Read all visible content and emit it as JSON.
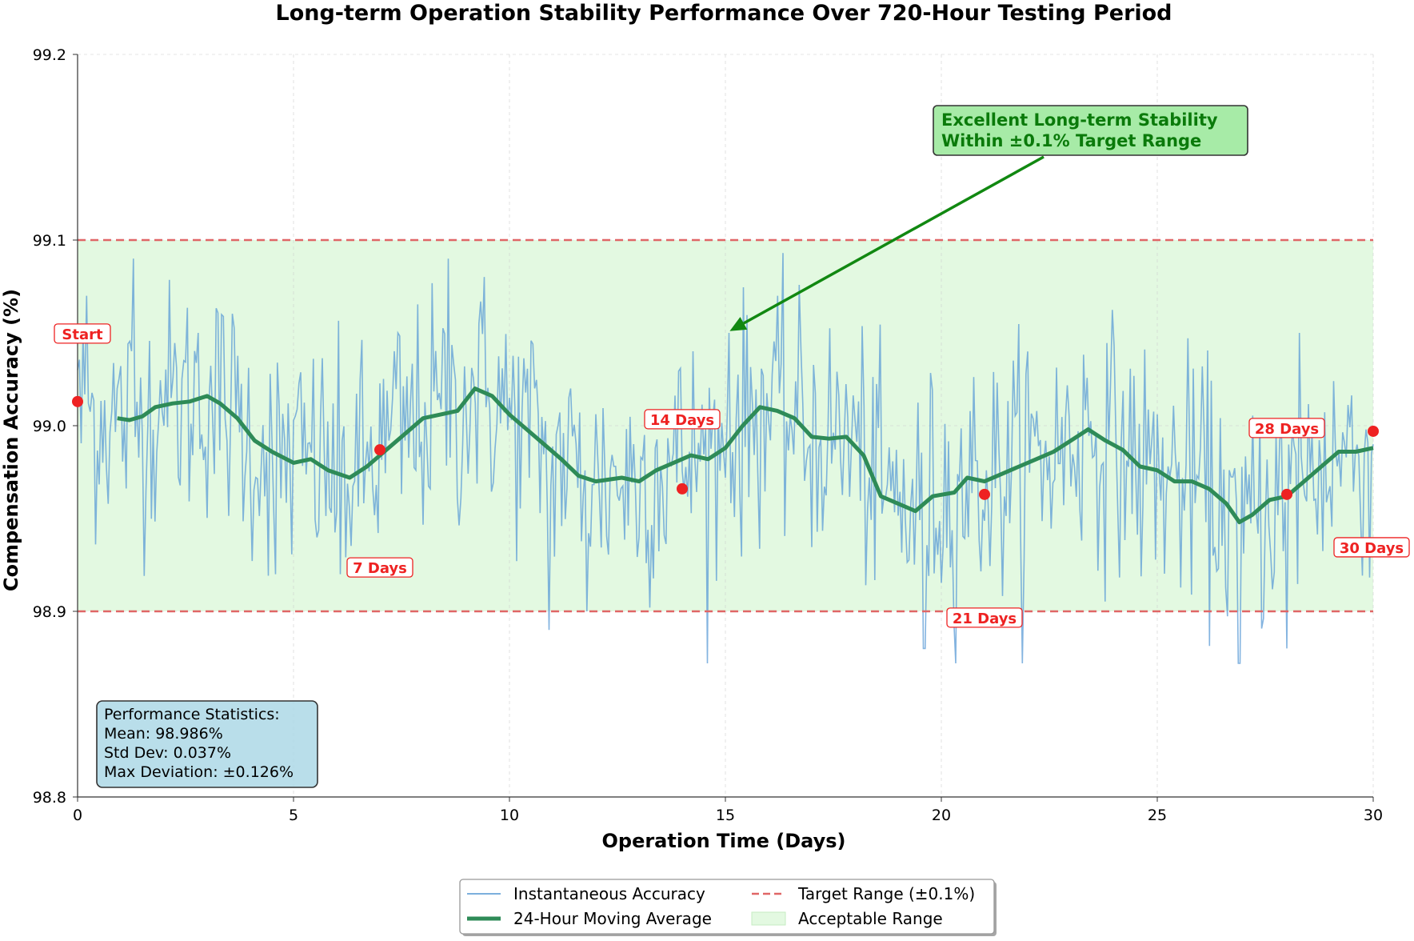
{
  "chart_data": {
    "type": "line",
    "title": "Long-term Operation Stability Performance Over 720-Hour Testing Period",
    "xlabel": "Operation Time (Days)",
    "ylabel": "Compensation Accuracy (%)",
    "xlim": [
      0,
      30
    ],
    "ylim": [
      98.8,
      99.2
    ],
    "xticks": [
      "0",
      "5",
      "10",
      "15",
      "20",
      "25",
      "30"
    ],
    "xtick_values": [
      0,
      5,
      10,
      15,
      20,
      25,
      30
    ],
    "yticks": [
      "98.8",
      "98.9",
      "99.0",
      "99.1",
      "99.2"
    ],
    "ytick_values": [
      98.8,
      98.9,
      99.0,
      99.1,
      99.2
    ],
    "grid": true,
    "series": [
      {
        "name": "Instantaneous Accuracy",
        "color": "#5b9bd5",
        "note": "hourly samples (~720), noisy around moving average",
        "seed_points": [
          {
            "x": 0.0,
            "y": 99.03
          },
          {
            "x": 0.2,
            "y": 99.07
          },
          {
            "x": 0.6,
            "y": 98.98
          },
          {
            "x": 0.9,
            "y": 99.02
          },
          {
            "x": 1.3,
            "y": 99.09
          },
          {
            "x": 2.0,
            "y": 99.0
          },
          {
            "x": 2.8,
            "y": 99.05
          },
          {
            "x": 4.0,
            "y": 98.97
          },
          {
            "x": 4.6,
            "y": 98.92
          },
          {
            "x": 6.1,
            "y": 98.92
          },
          {
            "x": 7.4,
            "y": 99.05
          },
          {
            "x": 8.6,
            "y": 99.09
          },
          {
            "x": 10.9,
            "y": 98.89
          },
          {
            "x": 11.8,
            "y": 98.9
          },
          {
            "x": 15.1,
            "y": 99.05
          },
          {
            "x": 16.2,
            "y": 99.07
          },
          {
            "x": 19.6,
            "y": 98.88
          },
          {
            "x": 22.0,
            "y": 99.04
          },
          {
            "x": 26.3,
            "y": 98.93
          },
          {
            "x": 26.9,
            "y": 98.87
          },
          {
            "x": 28.0,
            "y": 98.88
          },
          {
            "x": 28.3,
            "y": 99.05
          },
          {
            "x": 30.0,
            "y": 98.99
          }
        ]
      },
      {
        "name": "24-Hour Moving Average",
        "color": "#2e8b57",
        "points": [
          {
            "x": 0.92,
            "y": 99.004
          },
          {
            "x": 1.2,
            "y": 99.003
          },
          {
            "x": 1.5,
            "y": 99.005
          },
          {
            "x": 1.8,
            "y": 99.01
          },
          {
            "x": 2.2,
            "y": 99.012
          },
          {
            "x": 2.6,
            "y": 99.013
          },
          {
            "x": 3.0,
            "y": 99.016
          },
          {
            "x": 3.3,
            "y": 99.012
          },
          {
            "x": 3.7,
            "y": 99.004
          },
          {
            "x": 4.1,
            "y": 98.992
          },
          {
            "x": 4.5,
            "y": 98.986
          },
          {
            "x": 5.0,
            "y": 98.98
          },
          {
            "x": 5.4,
            "y": 98.982
          },
          {
            "x": 5.8,
            "y": 98.976
          },
          {
            "x": 6.3,
            "y": 98.972
          },
          {
            "x": 6.7,
            "y": 98.978
          },
          {
            "x": 7.2,
            "y": 98.988
          },
          {
            "x": 7.6,
            "y": 98.996
          },
          {
            "x": 8.0,
            "y": 99.004
          },
          {
            "x": 8.4,
            "y": 99.006
          },
          {
            "x": 8.8,
            "y": 99.008
          },
          {
            "x": 9.2,
            "y": 99.02
          },
          {
            "x": 9.6,
            "y": 99.016
          },
          {
            "x": 10.0,
            "y": 99.006
          },
          {
            "x": 10.4,
            "y": 98.998
          },
          {
            "x": 10.8,
            "y": 98.99
          },
          {
            "x": 11.2,
            "y": 98.982
          },
          {
            "x": 11.6,
            "y": 98.973
          },
          {
            "x": 12.0,
            "y": 98.97
          },
          {
            "x": 12.6,
            "y": 98.972
          },
          {
            "x": 13.0,
            "y": 98.97
          },
          {
            "x": 13.4,
            "y": 98.976
          },
          {
            "x": 13.8,
            "y": 98.98
          },
          {
            "x": 14.2,
            "y": 98.984
          },
          {
            "x": 14.6,
            "y": 98.982
          },
          {
            "x": 15.0,
            "y": 98.988
          },
          {
            "x": 15.4,
            "y": 99.0
          },
          {
            "x": 15.8,
            "y": 99.01
          },
          {
            "x": 16.2,
            "y": 99.008
          },
          {
            "x": 16.6,
            "y": 99.004
          },
          {
            "x": 17.0,
            "y": 98.994
          },
          {
            "x": 17.4,
            "y": 98.993
          },
          {
            "x": 17.8,
            "y": 98.994
          },
          {
            "x": 18.2,
            "y": 98.984
          },
          {
            "x": 18.6,
            "y": 98.962
          },
          {
            "x": 19.0,
            "y": 98.958
          },
          {
            "x": 19.4,
            "y": 98.954
          },
          {
            "x": 19.8,
            "y": 98.962
          },
          {
            "x": 20.3,
            "y": 98.964
          },
          {
            "x": 20.6,
            "y": 98.972
          },
          {
            "x": 21.0,
            "y": 98.97
          },
          {
            "x": 21.4,
            "y": 98.974
          },
          {
            "x": 21.8,
            "y": 98.978
          },
          {
            "x": 22.2,
            "y": 98.982
          },
          {
            "x": 22.6,
            "y": 98.986
          },
          {
            "x": 23.0,
            "y": 98.992
          },
          {
            "x": 23.4,
            "y": 98.998
          },
          {
            "x": 23.8,
            "y": 98.992
          },
          {
            "x": 24.2,
            "y": 98.987
          },
          {
            "x": 24.6,
            "y": 98.978
          },
          {
            "x": 25.0,
            "y": 98.976
          },
          {
            "x": 25.4,
            "y": 98.97
          },
          {
            "x": 25.8,
            "y": 98.97
          },
          {
            "x": 26.2,
            "y": 98.966
          },
          {
            "x": 26.6,
            "y": 98.958
          },
          {
            "x": 26.9,
            "y": 98.948
          },
          {
            "x": 27.2,
            "y": 98.952
          },
          {
            "x": 27.6,
            "y": 98.96
          },
          {
            "x": 28.0,
            "y": 98.962
          },
          {
            "x": 28.4,
            "y": 98.97
          },
          {
            "x": 28.8,
            "y": 98.978
          },
          {
            "x": 29.2,
            "y": 98.986
          },
          {
            "x": 29.6,
            "y": 98.986
          },
          {
            "x": 30.0,
            "y": 98.988
          }
        ]
      }
    ],
    "target_range": {
      "label": "Target Range (±0.1%)",
      "upper": 99.1,
      "lower": 98.9,
      "color": "#e06666"
    },
    "acceptable_range": {
      "label": "Acceptable Range",
      "from": 98.9,
      "to": 99.1,
      "color": "#e3f9e1"
    },
    "milestones": [
      {
        "x": 0,
        "y": 99.013,
        "label": "Start"
      },
      {
        "x": 7,
        "y": 98.987,
        "label": "7 Days"
      },
      {
        "x": 14,
        "y": 98.966,
        "label": "14 Days"
      },
      {
        "x": 21,
        "y": 98.963,
        "label": "21 Days"
      },
      {
        "x": 28,
        "y": 98.963,
        "label": "28 Days"
      },
      {
        "x": 30,
        "y": 98.997,
        "label": "30 Days"
      }
    ],
    "annotation": {
      "line1": "Excellent Long-term Stability",
      "line2": "Within ±0.1% Target Range",
      "arrow_to": {
        "x": 15.1,
        "y": 99.051
      }
    },
    "stats_box": {
      "title": "Performance Statistics:",
      "mean": "Mean: 98.986%",
      "std": "Std Dev: 0.037%",
      "max_dev": "Max Deviation: ±0.126%"
    },
    "legend": [
      {
        "label": "Instantaneous Accuracy",
        "kind": "thin-line",
        "color": "#5b9bd5"
      },
      {
        "label": "24-Hour Moving Average",
        "kind": "thick-line",
        "color": "#2e8b57"
      },
      {
        "label": "Target Range (±0.1%)",
        "kind": "dashed-line",
        "color": "#e06666"
      },
      {
        "label": "Acceptable Range",
        "kind": "patch",
        "color": "#e3f9e1"
      }
    ]
  }
}
